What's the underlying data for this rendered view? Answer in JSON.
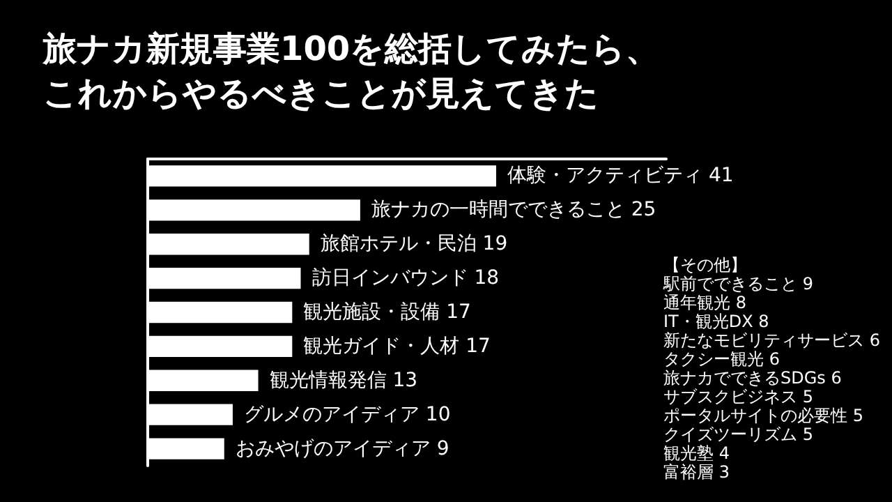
{
  "chart_data": {
    "type": "bar",
    "orientation": "horizontal",
    "title": "旅ナカ新規事業100を総括してみたら、これからやるべきことが見えてきた",
    "categories": [
      null,
      null,
      null,
      null,
      null,
      null,
      null,
      null,
      null
    ],
    "values": [
      41,
      25,
      19,
      18,
      17,
      17,
      13,
      10,
      9
    ],
    "value_labels": [
      "体験・アクティビティ 41",
      "旅ナカの一時間でできること 25",
      "旅館ホテル・民泊 19",
      "訪日インバウンド 18",
      "観光施設・設備 17",
      "観光ガイド・人材 17",
      "観光情報発信 13",
      "グルメのアイディア 10",
      "おみやげのアイディア 9"
    ],
    "color": "#ffffff",
    "tick_labels": false,
    "grid": false,
    "annotations": [
      "【その他】",
      "駅前でできること 9",
      "通年観光 8",
      "IT・観光DX 8",
      "新たなモビリティサービス 6",
      "タクシー観光 6",
      "旅ナカでできるSDGs 6",
      "サブスクビジネス 5",
      "ポータルサイトの必要性 5",
      "クイズツーリズム 5",
      "観光塾 4",
      "富裕層 3"
    ]
  }
}
